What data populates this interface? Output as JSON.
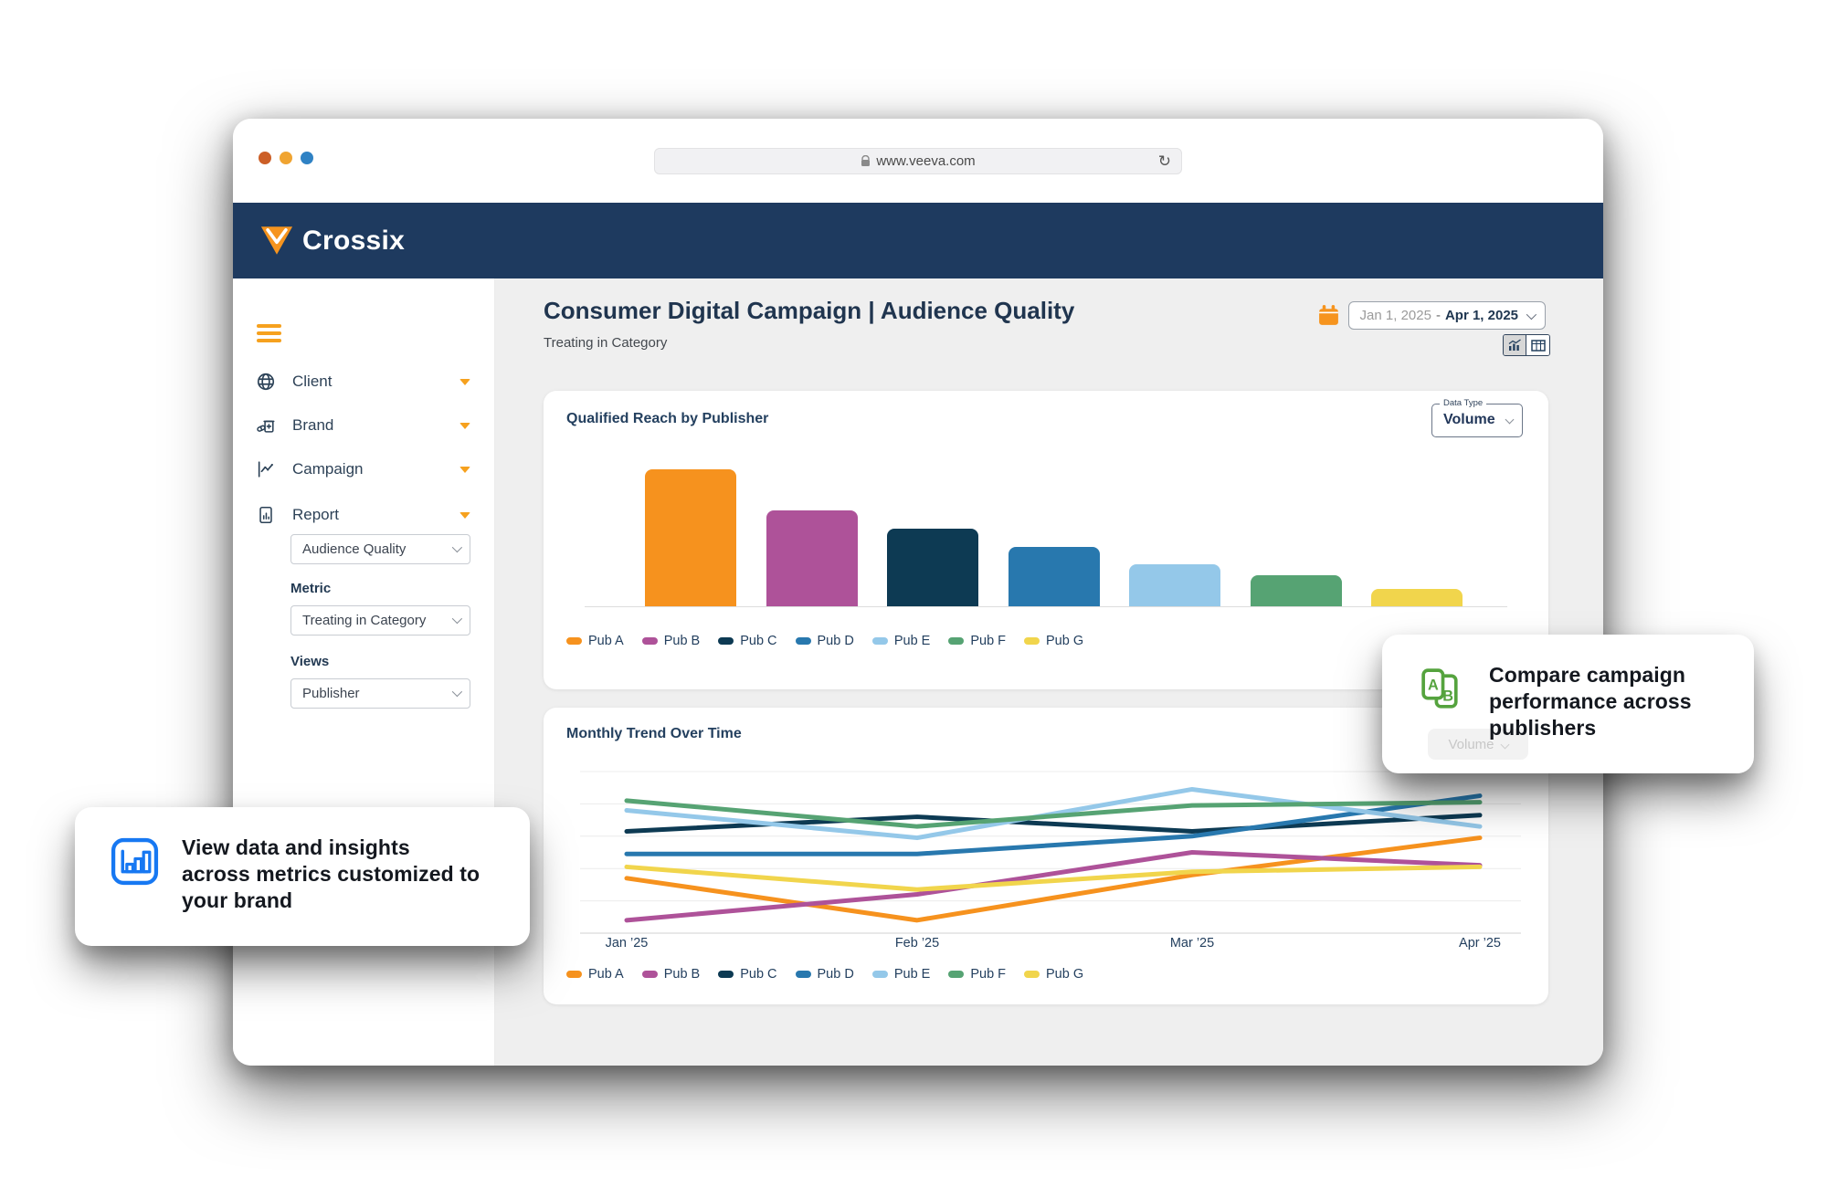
{
  "browser": {
    "url": "www.veeva.com",
    "traffic_lights": [
      "#CC5F27",
      "#F0A431",
      "#2F82C4"
    ],
    "refresh_glyph": "↻"
  },
  "header": {
    "logo_text": "Crossix",
    "brand_navy": "#1E3A5F",
    "brand_orange": "#F6941E"
  },
  "sidebar": {
    "items": [
      {
        "label": "Client",
        "icon": "globe-icon"
      },
      {
        "label": "Brand",
        "icon": "pill-bottle-icon"
      },
      {
        "label": "Campaign",
        "icon": "campaign-chart-icon"
      },
      {
        "label": "Report",
        "icon": "report-document-icon"
      }
    ],
    "report_select_value": "Audience Quality",
    "metric_label": "Metric",
    "metric_select_value": "Treating in Category",
    "views_label": "Views",
    "views_select_value": "Publisher"
  },
  "main": {
    "title": "Consumer Digital Campaign | Audience Quality",
    "subtitle": "Treating in Category",
    "date_range": {
      "start": "Jan 1, 2025",
      "separator": "-",
      "end": "Apr 1, 2025"
    }
  },
  "chart_data": [
    {
      "type": "bar",
      "title": "Qualified Reach by Publisher",
      "data_type_label": "Data Type",
      "data_type_value": "Volume",
      "categories": [
        "Pub A",
        "Pub B",
        "Pub C",
        "Pub D",
        "Pub E",
        "Pub F",
        "Pub G"
      ],
      "values": [
        100,
        70,
        57,
        44,
        31,
        23,
        13
      ],
      "colors": [
        "#F6921E",
        "#AE5299",
        "#0D3A53",
        "#2878AE",
        "#94C8E9",
        "#56A373",
        "#F1D54C"
      ],
      "ylim": [
        0,
        105
      ],
      "grid": false,
      "legend_position": "bottom",
      "xlabel": "",
      "ylabel": ""
    },
    {
      "type": "line",
      "title": "Monthly Trend Over Time",
      "x": [
        "Jan ’25",
        "Feb ’25",
        "Mar ’25",
        "Apr ’25"
      ],
      "series": [
        {
          "name": "Pub A",
          "color": "#F6921E",
          "values": [
            34,
            8,
            36,
            59
          ]
        },
        {
          "name": "Pub B",
          "color": "#AE5299",
          "values": [
            8,
            24,
            50,
            42
          ]
        },
        {
          "name": "Pub C",
          "color": "#0D3A53",
          "values": [
            63,
            72,
            63,
            73
          ]
        },
        {
          "name": "Pub D",
          "color": "#2878AE",
          "values": [
            49,
            49,
            60,
            85
          ]
        },
        {
          "name": "Pub E",
          "color": "#94C8E9",
          "values": [
            76,
            59,
            89,
            66
          ]
        },
        {
          "name": "Pub F",
          "color": "#56A373",
          "values": [
            82,
            66,
            79,
            81
          ]
        },
        {
          "name": "Pub G",
          "color": "#F1D54C",
          "values": [
            41,
            27,
            38,
            41
          ]
        }
      ],
      "ylim": [
        0,
        100
      ],
      "grid": true,
      "legend_position": "bottom",
      "xlabel": "",
      "ylabel": ""
    }
  ],
  "callouts": {
    "left": {
      "icon": "bar-chart-icon",
      "icon_color": "#1778F2",
      "text": "View data and insights across metrics customized to your brand"
    },
    "right": {
      "icon": "ab-compare-icon",
      "icon_color": "#55A33E",
      "text": "Compare campaign performance across publishers",
      "ghost_value": "Volume"
    }
  }
}
